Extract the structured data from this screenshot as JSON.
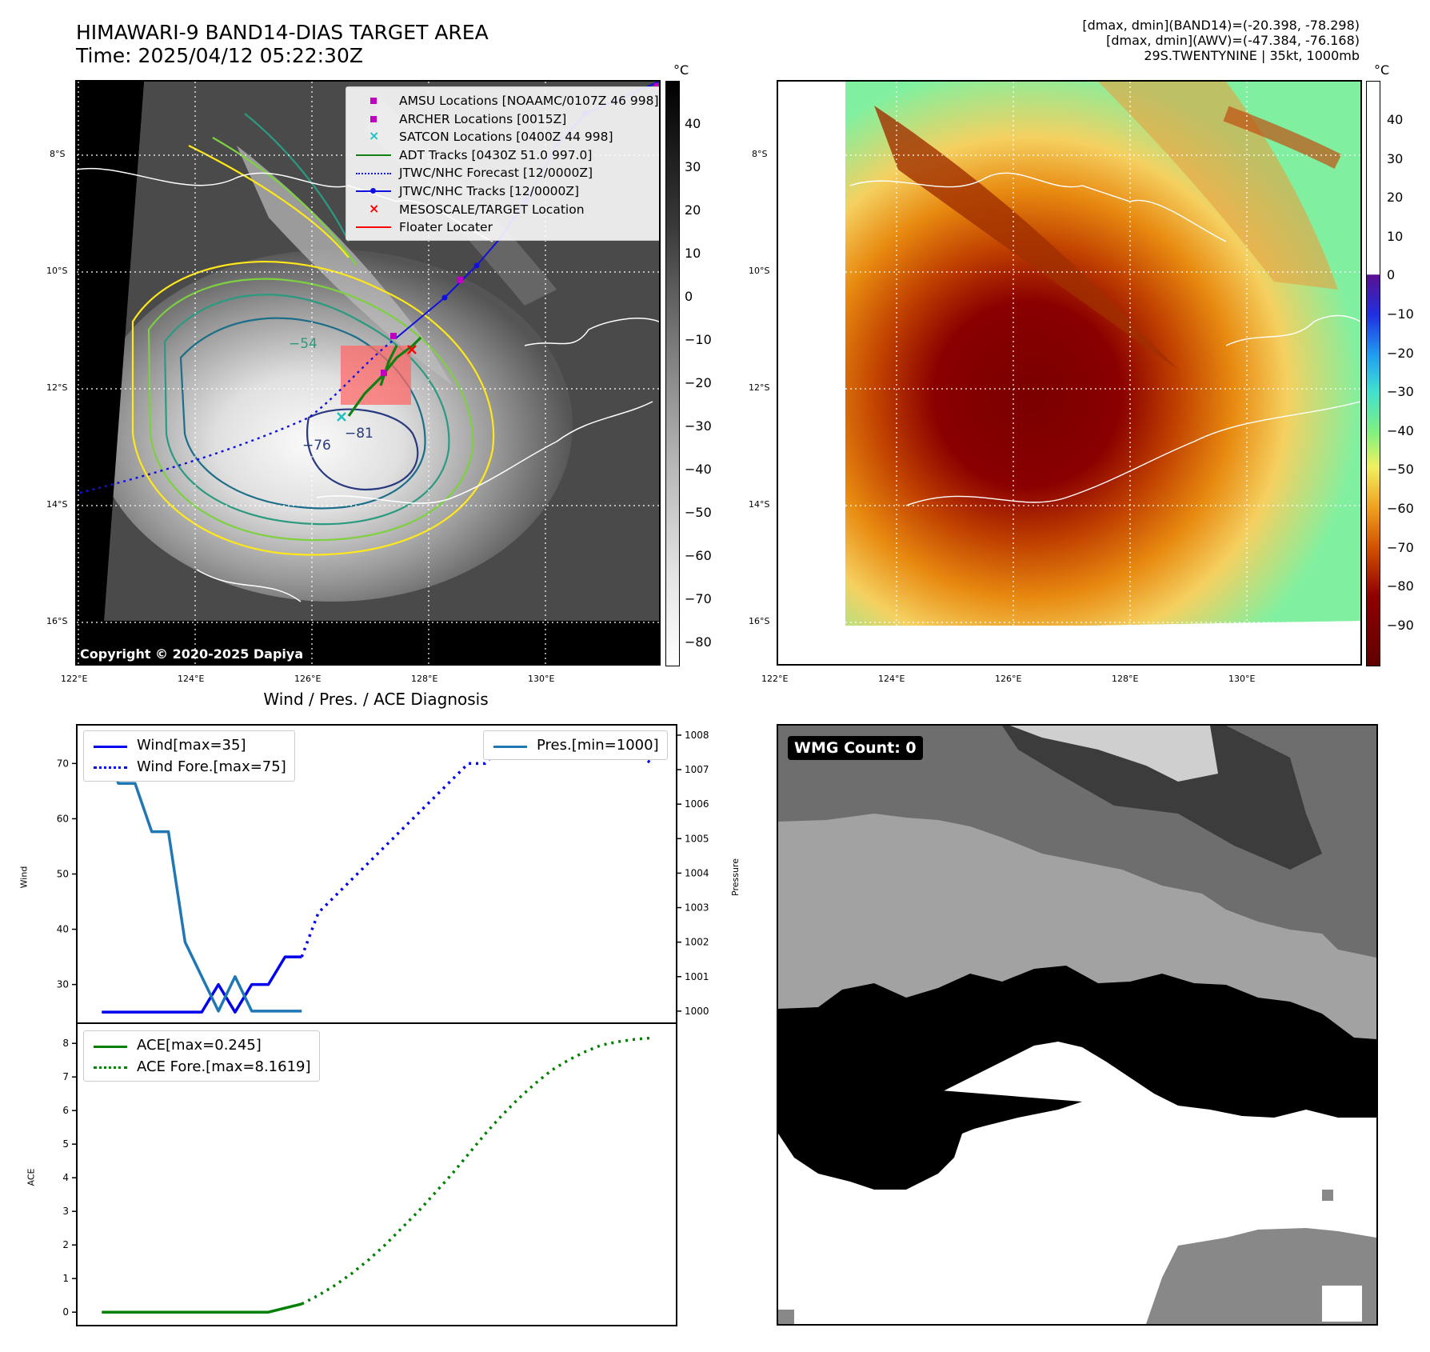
{
  "header": {
    "title_line1": "HIMAWARI-9 BAND14-DIAS TARGET AREA",
    "title_line2": "Time: 2025/04/12 05:22:30Z",
    "info_line1": "[dmax, dmin](BAND14)=(-20.398, -78.298)",
    "info_line2": "[dmax, dmin](AWV)=(-47.384, -76.168)",
    "info_line3": "29S.TWENTYNINE | 35kt, 1000mb"
  },
  "map_left": {
    "legend": [
      {
        "label": "AMSU Locations [NOAAMC/0107Z 46 998]",
        "symbol": "square",
        "color": "#c000c0"
      },
      {
        "label": "ARCHER Locations [0015Z]",
        "symbol": "square",
        "color": "#c000c0"
      },
      {
        "label": "SATCON Locations [0400Z 44 998]",
        "symbol": "x",
        "color": "#20c0c0"
      },
      {
        "label": "ADT Tracks [0430Z 51.0 997.0]",
        "symbol": "line",
        "color": "#108010"
      },
      {
        "label": "JTWC/NHC Forecast [12/0000Z]",
        "symbol": "dotted",
        "color": "#1010e0"
      },
      {
        "label": "JTWC/NHC Tracks [12/0000Z]",
        "symbol": "line-dot",
        "color": "#1010e0"
      },
      {
        "label": "MESOSCALE/TARGET Location",
        "symbol": "x",
        "color": "#ff0000"
      },
      {
        "label": "Floater Locater",
        "symbol": "line",
        "color": "#ff0000"
      }
    ],
    "contour_labels": [
      "−54",
      "−76",
      "−81"
    ],
    "copyright": "Copyright © 2020-2025 Dapiya",
    "colorbar_unit": "°C",
    "colorbar_ticks": [
      "40",
      "30",
      "20",
      "10",
      "0",
      "−10",
      "−20",
      "−30",
      "−40",
      "−50",
      "−60",
      "−70",
      "−80"
    ]
  },
  "map_right": {
    "colorbar_unit": "°C",
    "colorbar_ticks": [
      "40",
      "30",
      "20",
      "10",
      "0",
      "−10",
      "−20",
      "−30",
      "−40",
      "−50",
      "−60",
      "−70",
      "−80",
      "−90"
    ]
  },
  "map_axes": {
    "lat_ticks": [
      "8°S",
      "10°S",
      "12°S",
      "14°S",
      "16°S"
    ],
    "lon_ticks": [
      "122°E",
      "124°E",
      "126°E",
      "128°E",
      "130°E"
    ]
  },
  "diagnosis": {
    "title": "Wind / Pres. / ACE Diagnosis",
    "wind_ylabel": "Wind",
    "pres_ylabel": "Pressure",
    "ace_ylabel": "ACE",
    "wind_legend": [
      "Wind[max=35]",
      "Wind Fore.[max=75]"
    ],
    "pres_legend": [
      "Pres.[min=1000]"
    ],
    "ace_legend": [
      "ACE[max=0.245]",
      "ACE Fore.[max=8.1619]"
    ],
    "wind_ticks": [
      "70",
      "60",
      "50",
      "40",
      "30"
    ],
    "pres_ticks": [
      "1008",
      "1007",
      "1006",
      "1005",
      "1004",
      "1003",
      "1002",
      "1001",
      "1000"
    ],
    "ace_ticks": [
      "8",
      "7",
      "6",
      "5",
      "4",
      "3",
      "2",
      "1",
      "0"
    ]
  },
  "wmg": {
    "count_label": "WMG Count: 0"
  },
  "colors": {
    "wind": "#0000ee",
    "pressure": "#1f77b4",
    "ace": "#008000"
  },
  "chart_data": [
    {
      "type": "line",
      "title": "Wind / Pres. / ACE Diagnosis",
      "ylabel": "Wind",
      "ylim": [
        23,
        77
      ],
      "series": [
        {
          "name": "Wind[max=35]",
          "x": [
            0,
            1,
            2,
            3,
            4,
            5,
            6,
            7,
            8,
            9,
            10,
            11,
            12
          ],
          "values": [
            25,
            25,
            25,
            25,
            25,
            25,
            25,
            30,
            25,
            30,
            30,
            35,
            35
          ]
        },
        {
          "name": "Wind Fore.[max=75]",
          "x": [
            12,
            13,
            14,
            15,
            16,
            17,
            18,
            19,
            20,
            21,
            22,
            23,
            24,
            25,
            26,
            27,
            28,
            29,
            30,
            31,
            32,
            33
          ],
          "values": [
            35,
            43,
            46,
            49,
            52,
            55,
            58,
            61,
            64,
            67,
            70,
            70,
            73,
            74,
            75,
            75,
            75,
            75,
            73,
            72,
            72,
            70
          ]
        }
      ],
      "y2label": "Pressure",
      "y2lim": [
        999.65,
        1008.3
      ],
      "series2": [
        {
          "name": "Pres.[min=1000]",
          "x": [
            0,
            1,
            2,
            3,
            4,
            5,
            6,
            7,
            8,
            9,
            10,
            11,
            12
          ],
          "values": [
            1008,
            1006.6,
            1006.6,
            1005.2,
            1005.2,
            1002,
            1001,
            1000,
            1001,
            1000,
            1000,
            1000,
            1000
          ]
        }
      ]
    },
    {
      "type": "line",
      "ylabel": "ACE",
      "ylim": [
        -0.4,
        8.6
      ],
      "series": [
        {
          "name": "ACE[max=0.245]",
          "x": [
            0,
            1,
            2,
            3,
            4,
            5,
            6,
            7,
            8,
            9,
            10,
            11,
            12
          ],
          "values": [
            0,
            0,
            0,
            0,
            0,
            0,
            0,
            0,
            0,
            0,
            0,
            0.1225,
            0.245
          ]
        },
        {
          "name": "ACE Fore.[max=8.1619]",
          "x": [
            12,
            13,
            14,
            15,
            16,
            17,
            18,
            19,
            20,
            21,
            22,
            23,
            24,
            25,
            26,
            27,
            28,
            29,
            30,
            31,
            32,
            33
          ],
          "values": [
            0.245,
            0.5,
            0.8,
            1.15,
            1.55,
            2.0,
            2.5,
            3.0,
            3.55,
            4.1,
            4.7,
            5.3,
            5.85,
            6.35,
            6.8,
            7.2,
            7.5,
            7.75,
            7.95,
            8.05,
            8.12,
            8.1619
          ]
        }
      ]
    }
  ]
}
